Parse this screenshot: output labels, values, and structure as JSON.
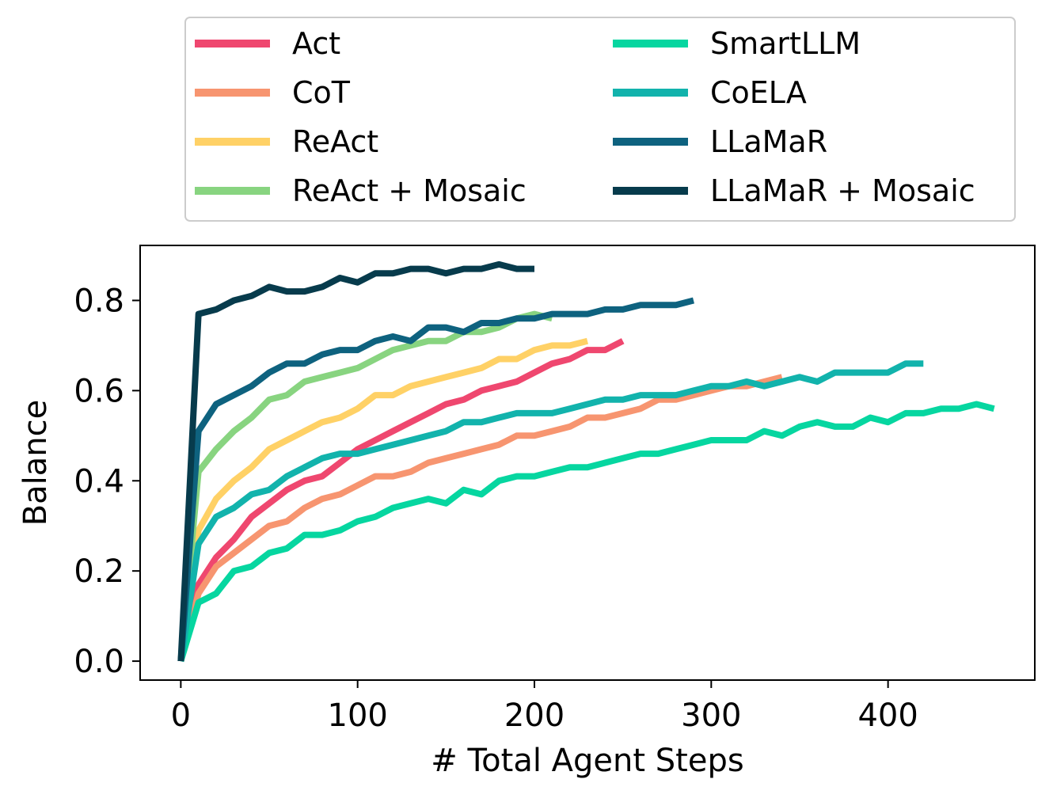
{
  "chart_data": {
    "type": "line",
    "title": "",
    "xlabel": "# Total Agent Steps",
    "ylabel": "Balance",
    "xlim": [
      -23,
      483
    ],
    "ylim": [
      -0.042,
      0.922
    ],
    "xticks": [
      0,
      100,
      200,
      300,
      400
    ],
    "xtick_labels": [
      "0",
      "100",
      "200",
      "300",
      "400"
    ],
    "yticks": [
      0.0,
      0.2,
      0.4,
      0.6,
      0.8
    ],
    "ytick_labels": [
      "0.0",
      "0.2",
      "0.4",
      "0.6",
      "0.8"
    ],
    "grid": false,
    "legend": {
      "placement": "top (above plot), 2 columns"
    },
    "series": [
      {
        "name": "Act",
        "color": "#ef476f",
        "x": [
          0,
          10,
          20,
          30,
          40,
          50,
          60,
          70,
          80,
          90,
          100,
          110,
          120,
          130,
          140,
          150,
          160,
          170,
          180,
          190,
          200,
          210,
          220,
          230,
          240,
          250
        ],
        "y": [
          0.0,
          0.17,
          0.23,
          0.27,
          0.32,
          0.35,
          0.38,
          0.4,
          0.41,
          0.44,
          0.47,
          0.49,
          0.51,
          0.53,
          0.55,
          0.57,
          0.58,
          0.6,
          0.61,
          0.62,
          0.64,
          0.66,
          0.67,
          0.69,
          0.69,
          0.71
        ]
      },
      {
        "name": "CoT",
        "color": "#f79570",
        "x": [
          0,
          10,
          20,
          30,
          40,
          50,
          60,
          70,
          80,
          90,
          100,
          110,
          120,
          130,
          140,
          150,
          160,
          170,
          180,
          190,
          200,
          210,
          220,
          230,
          240,
          250,
          260,
          270,
          280,
          290,
          300,
          310,
          320,
          330,
          340
        ],
        "y": [
          0.0,
          0.15,
          0.21,
          0.24,
          0.27,
          0.3,
          0.31,
          0.34,
          0.36,
          0.37,
          0.39,
          0.41,
          0.41,
          0.42,
          0.44,
          0.45,
          0.46,
          0.47,
          0.48,
          0.5,
          0.5,
          0.51,
          0.52,
          0.54,
          0.54,
          0.55,
          0.56,
          0.58,
          0.58,
          0.59,
          0.6,
          0.61,
          0.61,
          0.62,
          0.63
        ]
      },
      {
        "name": "ReAct",
        "color": "#ffd166",
        "x": [
          0,
          10,
          20,
          30,
          40,
          50,
          60,
          70,
          80,
          90,
          100,
          110,
          120,
          130,
          140,
          150,
          160,
          170,
          180,
          190,
          200,
          210,
          220,
          230
        ],
        "y": [
          0.0,
          0.29,
          0.36,
          0.4,
          0.43,
          0.47,
          0.49,
          0.51,
          0.53,
          0.54,
          0.56,
          0.59,
          0.59,
          0.61,
          0.62,
          0.63,
          0.64,
          0.65,
          0.67,
          0.67,
          0.69,
          0.7,
          0.7,
          0.71
        ]
      },
      {
        "name": "ReAct + Mosaic",
        "color": "#88d480",
        "x": [
          0,
          10,
          20,
          30,
          40,
          50,
          60,
          70,
          80,
          90,
          100,
          110,
          120,
          130,
          140,
          150,
          160,
          170,
          180,
          190,
          200,
          210
        ],
        "y": [
          0.0,
          0.42,
          0.47,
          0.51,
          0.54,
          0.58,
          0.59,
          0.62,
          0.63,
          0.64,
          0.65,
          0.67,
          0.69,
          0.7,
          0.71,
          0.71,
          0.73,
          0.73,
          0.74,
          0.76,
          0.77,
          0.76
        ]
      },
      {
        "name": "SmartLLM",
        "color": "#06d6a0",
        "x": [
          0,
          10,
          20,
          30,
          40,
          50,
          60,
          70,
          80,
          90,
          100,
          110,
          120,
          130,
          140,
          150,
          160,
          170,
          180,
          190,
          200,
          210,
          220,
          230,
          240,
          250,
          260,
          270,
          280,
          290,
          300,
          310,
          320,
          330,
          340,
          350,
          360,
          370,
          380,
          390,
          400,
          410,
          420,
          430,
          440,
          450,
          460
        ],
        "y": [
          0.0,
          0.13,
          0.15,
          0.2,
          0.21,
          0.24,
          0.25,
          0.28,
          0.28,
          0.29,
          0.31,
          0.32,
          0.34,
          0.35,
          0.36,
          0.35,
          0.38,
          0.37,
          0.4,
          0.41,
          0.41,
          0.42,
          0.43,
          0.43,
          0.44,
          0.45,
          0.46,
          0.46,
          0.47,
          0.48,
          0.49,
          0.49,
          0.49,
          0.51,
          0.5,
          0.52,
          0.53,
          0.52,
          0.52,
          0.54,
          0.53,
          0.55,
          0.55,
          0.56,
          0.56,
          0.57,
          0.56
        ]
      },
      {
        "name": "CoELA",
        "color": "#12b3ac",
        "x": [
          0,
          10,
          20,
          30,
          40,
          50,
          60,
          70,
          80,
          90,
          100,
          110,
          120,
          130,
          140,
          150,
          160,
          170,
          180,
          190,
          200,
          210,
          220,
          230,
          240,
          250,
          260,
          270,
          280,
          290,
          300,
          310,
          320,
          330,
          340,
          350,
          360,
          370,
          380,
          390,
          400,
          410,
          420
        ],
        "y": [
          0.0,
          0.26,
          0.32,
          0.34,
          0.37,
          0.38,
          0.41,
          0.43,
          0.45,
          0.46,
          0.46,
          0.47,
          0.48,
          0.49,
          0.5,
          0.51,
          0.53,
          0.53,
          0.54,
          0.55,
          0.55,
          0.55,
          0.56,
          0.57,
          0.58,
          0.58,
          0.59,
          0.59,
          0.59,
          0.6,
          0.61,
          0.61,
          0.62,
          0.61,
          0.62,
          0.63,
          0.62,
          0.64,
          0.64,
          0.64,
          0.64,
          0.66,
          0.66
        ]
      },
      {
        "name": "LLaMaR",
        "color": "#0e627f",
        "x": [
          0,
          10,
          20,
          30,
          40,
          50,
          60,
          70,
          80,
          90,
          100,
          110,
          120,
          130,
          140,
          150,
          160,
          170,
          180,
          190,
          200,
          210,
          220,
          230,
          240,
          250,
          260,
          270,
          280,
          290
        ],
        "y": [
          0.0,
          0.51,
          0.57,
          0.59,
          0.61,
          0.64,
          0.66,
          0.66,
          0.68,
          0.69,
          0.69,
          0.71,
          0.72,
          0.71,
          0.74,
          0.74,
          0.73,
          0.75,
          0.75,
          0.76,
          0.76,
          0.77,
          0.77,
          0.77,
          0.78,
          0.78,
          0.79,
          0.79,
          0.79,
          0.8
        ]
      },
      {
        "name": "LLaMaR + Mosaic",
        "color": "#073b4c",
        "x": [
          0,
          10,
          20,
          30,
          40,
          50,
          60,
          70,
          80,
          90,
          100,
          110,
          120,
          130,
          140,
          150,
          160,
          170,
          180,
          190,
          200
        ],
        "y": [
          0.0,
          0.77,
          0.78,
          0.8,
          0.81,
          0.83,
          0.82,
          0.82,
          0.83,
          0.85,
          0.84,
          0.86,
          0.86,
          0.87,
          0.87,
          0.86,
          0.87,
          0.87,
          0.88,
          0.87,
          0.87
        ]
      }
    ]
  }
}
